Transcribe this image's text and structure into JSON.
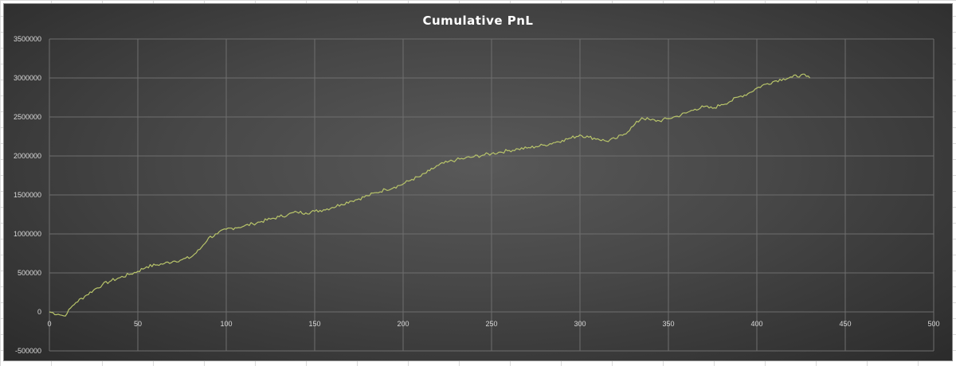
{
  "chart_data": {
    "type": "line",
    "title": "Cumulative PnL",
    "xlabel": "",
    "ylabel": "",
    "xlim": [
      0,
      500
    ],
    "ylim": [
      -500000,
      3500000
    ],
    "x_ticks": [
      0,
      50,
      100,
      150,
      200,
      250,
      300,
      350,
      400,
      450,
      500
    ],
    "y_ticks": [
      -500000,
      0,
      500000,
      1000000,
      1500000,
      2000000,
      2500000,
      3000000,
      3500000
    ],
    "x_tick_labels": [
      "0",
      "50",
      "100",
      "150",
      "200",
      "250",
      "300",
      "350",
      "400",
      "450",
      "500"
    ],
    "y_tick_labels": [
      "-500000",
      "0",
      "500000",
      "1000000",
      "1500000",
      "2000000",
      "2500000",
      "3000000",
      "3500000"
    ],
    "grid": true,
    "legend": "none",
    "colors": {
      "line": "#b8c46a",
      "grid": "#6e6e6e",
      "text": "#d9d9d9",
      "title": "#ffffff"
    },
    "series": [
      {
        "x": [
          0,
          5,
          8,
          10,
          12,
          15,
          20,
          25,
          30,
          35,
          40,
          45,
          50,
          55,
          60,
          65,
          70,
          75,
          80,
          85,
          90,
          95,
          100,
          105,
          110,
          115,
          120,
          125,
          130,
          135,
          140,
          145,
          150,
          155,
          160,
          165,
          170,
          175,
          180,
          185,
          190,
          195,
          200,
          205,
          210,
          215,
          220,
          225,
          230,
          235,
          240,
          245,
          250,
          255,
          260,
          265,
          270,
          275,
          280,
          285,
          290,
          295,
          300,
          305,
          310,
          315,
          320,
          325,
          330,
          335,
          340,
          345,
          350,
          355,
          360,
          365,
          370,
          375,
          380,
          385,
          390,
          395,
          400,
          405,
          410,
          415,
          420,
          425,
          428,
          430
        ],
        "y": [
          0,
          -30000,
          -50000,
          -20000,
          50000,
          120000,
          200000,
          280000,
          350000,
          400000,
          440000,
          480000,
          520000,
          580000,
          600000,
          620000,
          650000,
          670000,
          700000,
          800000,
          950000,
          1000000,
          1060000,
          1080000,
          1100000,
          1130000,
          1160000,
          1190000,
          1220000,
          1250000,
          1280000,
          1270000,
          1290000,
          1310000,
          1340000,
          1380000,
          1420000,
          1450000,
          1490000,
          1530000,
          1570000,
          1600000,
          1640000,
          1700000,
          1740000,
          1810000,
          1880000,
          1920000,
          1950000,
          1970000,
          1990000,
          2010000,
          2030000,
          2050000,
          2070000,
          2090000,
          2100000,
          2120000,
          2140000,
          2170000,
          2200000,
          2230000,
          2270000,
          2240000,
          2220000,
          2190000,
          2220000,
          2280000,
          2380000,
          2490000,
          2460000,
          2450000,
          2480000,
          2510000,
          2550000,
          2600000,
          2630000,
          2610000,
          2660000,
          2700000,
          2760000,
          2800000,
          2870000,
          2920000,
          2960000,
          2990000,
          3010000,
          3040000,
          3020000,
          3000000
        ]
      }
    ]
  }
}
